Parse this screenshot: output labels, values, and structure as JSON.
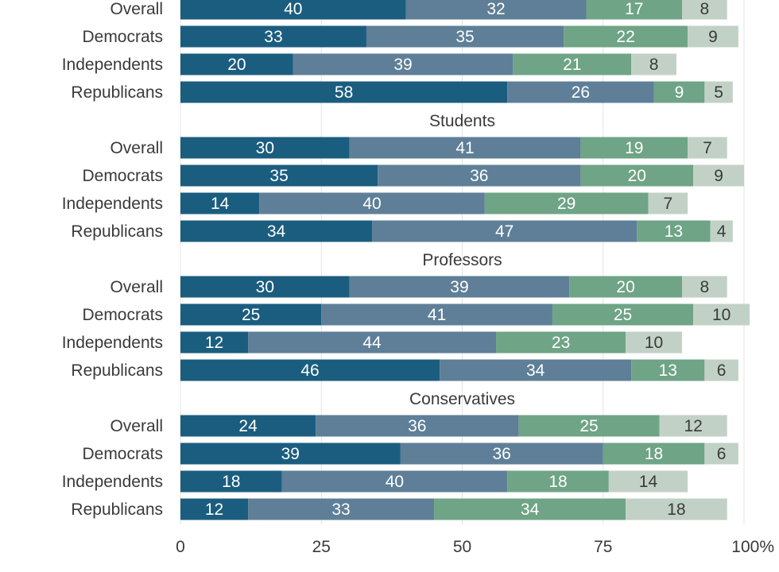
{
  "chart_data": {
    "type": "bar",
    "orientation": "horizontal",
    "stacked": true,
    "xlim": [
      0,
      100
    ],
    "x_ticks": [
      "0",
      "25",
      "50",
      "75",
      "100%"
    ],
    "grid": true,
    "series_colors": [
      "#1b5d7f",
      "#5e7f97",
      "#6fa486",
      "#c2d1c6"
    ],
    "groups": [
      {
        "title": "",
        "rows": [
          {
            "label": "Overall",
            "values": [
              40,
              32,
              17,
              8
            ]
          },
          {
            "label": "Democrats",
            "values": [
              33,
              35,
              22,
              9
            ]
          },
          {
            "label": "Independents",
            "values": [
              20,
              39,
              21,
              8
            ]
          },
          {
            "label": "Republicans",
            "values": [
              58,
              26,
              9,
              5
            ]
          }
        ]
      },
      {
        "title": "Students",
        "rows": [
          {
            "label": "Overall",
            "values": [
              30,
              41,
              19,
              7
            ]
          },
          {
            "label": "Democrats",
            "values": [
              35,
              36,
              20,
              9
            ]
          },
          {
            "label": "Independents",
            "values": [
              14,
              40,
              29,
              7
            ]
          },
          {
            "label": "Republicans",
            "values": [
              34,
              47,
              13,
              4
            ]
          }
        ]
      },
      {
        "title": "Professors",
        "rows": [
          {
            "label": "Overall",
            "values": [
              30,
              39,
              20,
              8
            ]
          },
          {
            "label": "Democrats",
            "values": [
              25,
              41,
              25,
              10
            ]
          },
          {
            "label": "Independents",
            "values": [
              12,
              44,
              23,
              10
            ]
          },
          {
            "label": "Republicans",
            "values": [
              46,
              34,
              13,
              6
            ]
          }
        ]
      },
      {
        "title": "Conservatives",
        "rows": [
          {
            "label": "Overall",
            "values": [
              24,
              36,
              25,
              12
            ]
          },
          {
            "label": "Democrats",
            "values": [
              39,
              36,
              18,
              6
            ]
          },
          {
            "label": "Independents",
            "values": [
              18,
              40,
              18,
              14
            ]
          },
          {
            "label": "Republicans",
            "values": [
              12,
              33,
              34,
              18
            ]
          }
        ]
      }
    ]
  }
}
